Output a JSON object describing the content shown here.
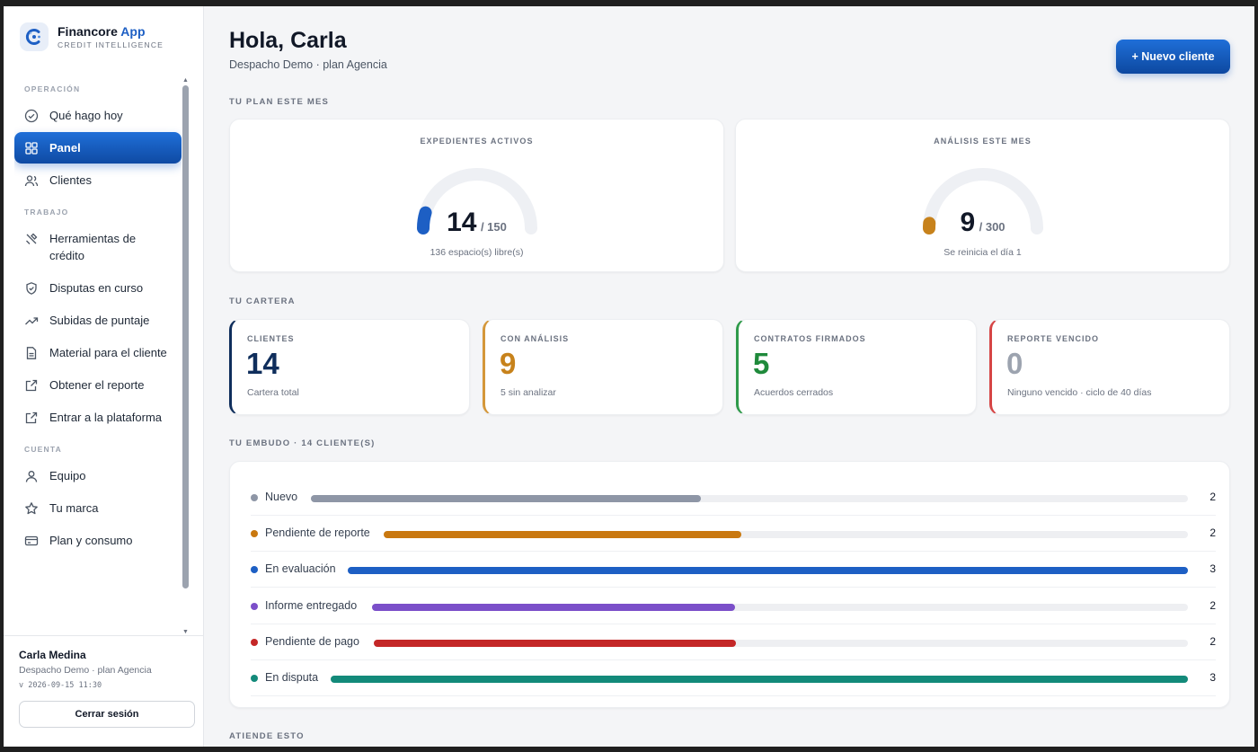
{
  "brand": {
    "name": "Financore",
    "name_accent": "App",
    "tagline": "CREDIT INTELLIGENCE"
  },
  "nav": {
    "sections": {
      "operacion": "OPERACIÓN",
      "trabajo": "TRABAJO",
      "cuenta": "CUENTA"
    },
    "items": [
      {
        "label": "Qué hago hoy",
        "icon": "check-circle-icon"
      },
      {
        "label": "Panel",
        "icon": "grid-icon",
        "active": true
      },
      {
        "label": "Clientes",
        "icon": "users-icon"
      },
      {
        "label": "Herramientas de crédito",
        "icon": "tools-icon"
      },
      {
        "label": "Disputas en curso",
        "icon": "shield-icon"
      },
      {
        "label": "Subidas de puntaje",
        "icon": "trending-up-icon"
      },
      {
        "label": "Material para el cliente",
        "icon": "document-icon"
      },
      {
        "label": "Obtener el reporte",
        "icon": "external-link-icon"
      },
      {
        "label": "Entrar a la plataforma",
        "icon": "external-link-icon"
      },
      {
        "label": "Equipo",
        "icon": "user-icon"
      },
      {
        "label": "Tu marca",
        "icon": "star-icon"
      },
      {
        "label": "Plan y consumo",
        "icon": "credit-card-icon"
      }
    ]
  },
  "user": {
    "name": "Carla Medina",
    "org": "Despacho Demo · plan Agencia",
    "version": "v 2026-09-15 11:30",
    "logout_label": "Cerrar sesión"
  },
  "header": {
    "greeting": "Hola, Carla",
    "subtitle": "Despacho Demo · plan Agencia",
    "new_client_label": "+ Nuevo cliente"
  },
  "plan": {
    "section_label": "TU PLAN ESTE MES",
    "expedientes": {
      "title": "EXPEDIENTES ACTIVOS",
      "value": "14",
      "max": "/ 150",
      "fraction": 0.0933,
      "note": "136 espacio(s) libre(s)",
      "color": "#1d5fc4"
    },
    "analisis": {
      "title": "ANÁLISIS ESTE MES",
      "value": "9",
      "max": "/ 300",
      "fraction": 0.03,
      "note": "Se reinicia el día 1",
      "color": "#c7821b"
    }
  },
  "cartera": {
    "section_label": "TU CARTERA",
    "cards": [
      {
        "label": "CLIENTES",
        "value": "14",
        "note": "Cartera total",
        "color": "#0f2e5c",
        "border": "#0f2e5c"
      },
      {
        "label": "CON ANÁLISIS",
        "value": "9",
        "note": "5 sin analizar",
        "color": "#c7821b",
        "border": "#d4973a"
      },
      {
        "label": "CONTRATOS FIRMADOS",
        "value": "5",
        "note": "Acuerdos cerrados",
        "color": "#1f8a3b",
        "border": "#2e9a4a"
      },
      {
        "label": "REPORTE VENCIDO",
        "value": "0",
        "note": "Ninguno vencido · ciclo de 40 días",
        "color": "#9ca3af",
        "border": "#d64545"
      }
    ]
  },
  "funnel": {
    "section_label": "TU EMBUDO · 14 CLIENTE(S)",
    "max": 3,
    "stages": [
      {
        "label": "Nuevo",
        "count": "2",
        "value": 2,
        "color": "#8e96a6"
      },
      {
        "label": "Pendiente de reporte",
        "count": "2",
        "value": 2,
        "color": "#c9780f"
      },
      {
        "label": "En evaluación",
        "count": "3",
        "value": 3,
        "color": "#1d5fc4"
      },
      {
        "label": "Informe entregado",
        "count": "2",
        "value": 2,
        "color": "#7b4fc9"
      },
      {
        "label": "Pendiente de pago",
        "count": "2",
        "value": 2,
        "color": "#c42727"
      },
      {
        "label": "En disputa",
        "count": "3",
        "value": 3,
        "color": "#138a7a"
      }
    ]
  },
  "attention": {
    "section_label": "ATIENDE ESTO"
  }
}
